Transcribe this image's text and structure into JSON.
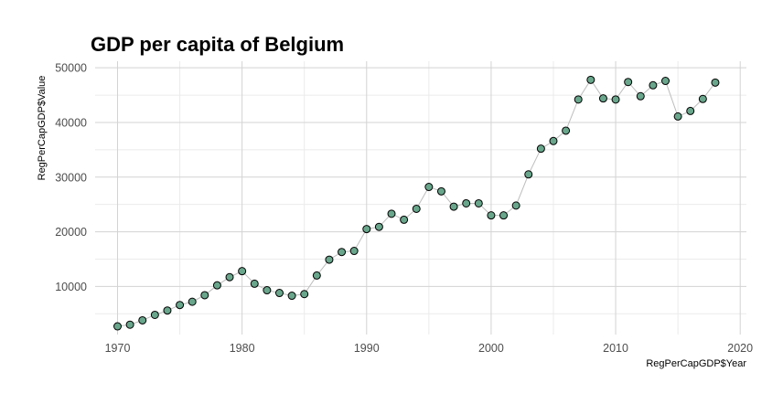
{
  "chart_data": {
    "type": "scatter",
    "title": "GDP per capita of Belgium",
    "xlabel": "RegPerCapGDP$Year",
    "ylabel": "RegPerCapGDP$Value",
    "xlim": [
      1968.2,
      2020.5
    ],
    "ylim": [
      1200,
      51200
    ],
    "x_ticks": [
      1970,
      1980,
      1990,
      2000,
      2010,
      2020
    ],
    "y_ticks": [
      10000,
      20000,
      30000,
      40000,
      50000
    ],
    "grid": true,
    "connect_line": true,
    "colors": {
      "point_fill": "#69a68c",
      "point_stroke": "#000000",
      "line": "#bdbdbd",
      "grid_major": "#d3d3d3",
      "grid_minor": "#ebebeb"
    },
    "x": [
      1970,
      1971,
      1972,
      1973,
      1974,
      1975,
      1976,
      1977,
      1978,
      1979,
      1980,
      1981,
      1982,
      1983,
      1984,
      1985,
      1986,
      1987,
      1988,
      1989,
      1990,
      1991,
      1992,
      1993,
      1994,
      1995,
      1996,
      1997,
      1998,
      1999,
      2000,
      2001,
      2002,
      2003,
      2004,
      2005,
      2006,
      2007,
      2008,
      2009,
      2010,
      2011,
      2012,
      2013,
      2014,
      2015,
      2016,
      2017,
      2018
    ],
    "y": [
      2700,
      3000,
      3800,
      4800,
      5600,
      6600,
      7200,
      8400,
      10200,
      11700,
      12800,
      10500,
      9300,
      8800,
      8300,
      8600,
      12000,
      14900,
      16300,
      16500,
      20500,
      20900,
      23300,
      22200,
      24200,
      28200,
      27400,
      24600,
      25200,
      25200,
      23000,
      23000,
      24800,
      30500,
      35200,
      36600,
      38500,
      44200,
      47800,
      44400,
      44200,
      47400,
      44800,
      46800,
      47600,
      41100,
      42100,
      44300,
      47300
    ]
  }
}
